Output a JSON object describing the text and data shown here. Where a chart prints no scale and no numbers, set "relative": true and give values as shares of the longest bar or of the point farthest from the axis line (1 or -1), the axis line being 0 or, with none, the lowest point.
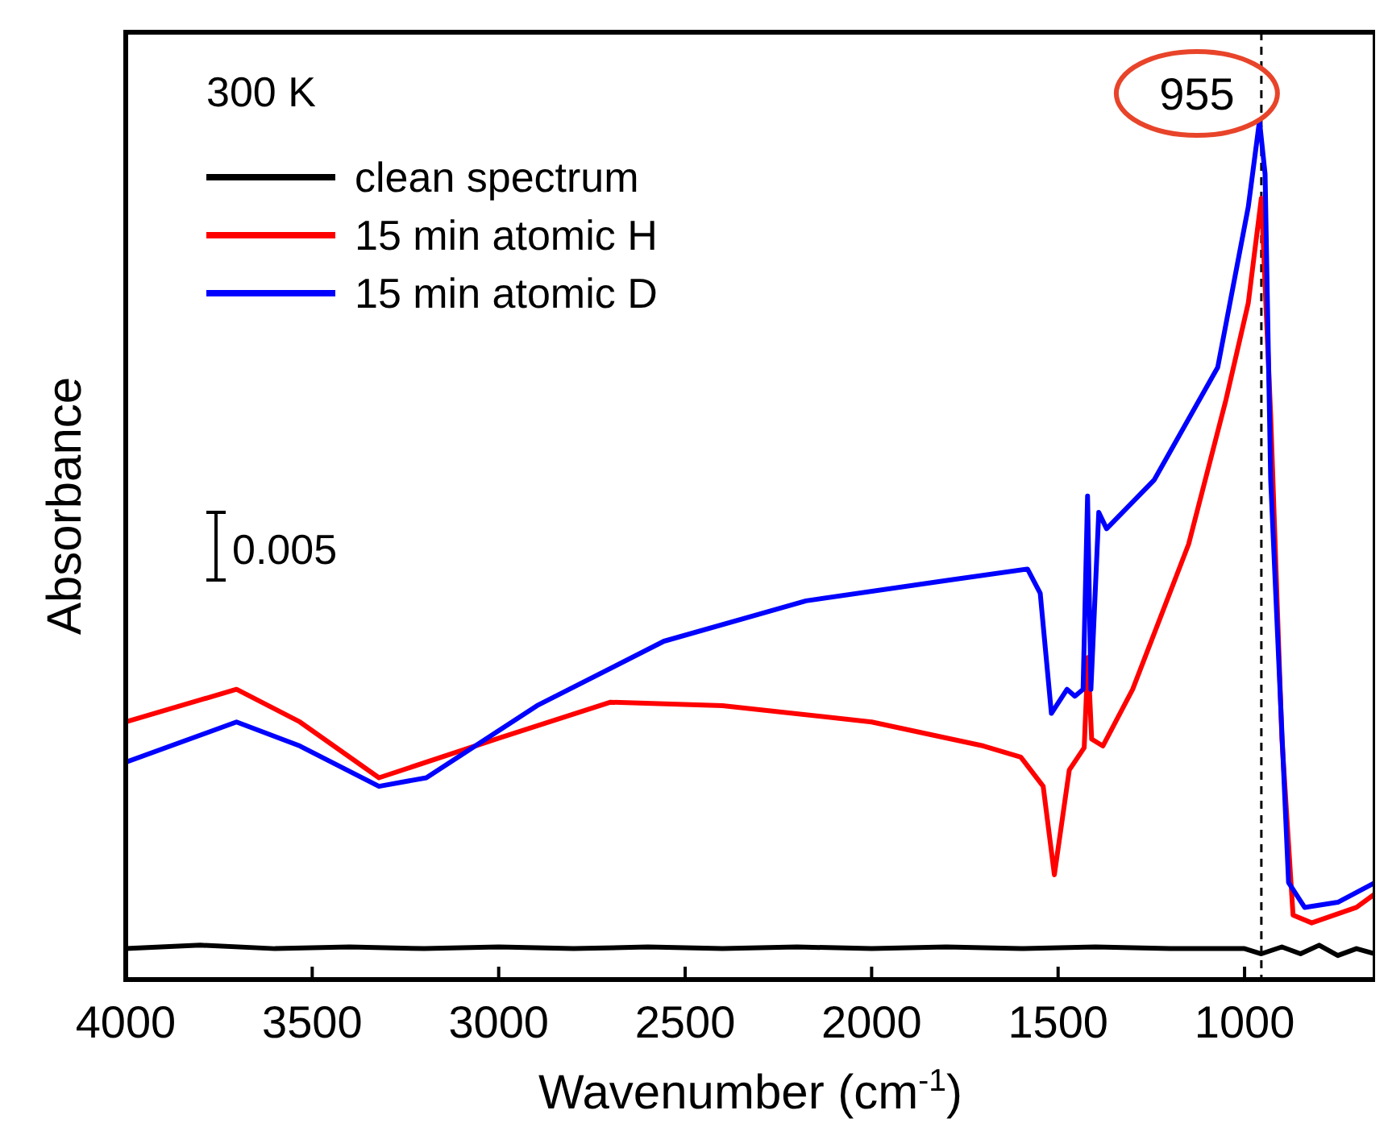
{
  "chart_data": {
    "type": "line",
    "relative": true,
    "xlabel": "Wavenumber (cm$^{-1}$)",
    "ylabel": "Absorbance",
    "legend_title": "300 K",
    "legend": "top left",
    "line_style": "solid",
    "xlim": [
      4000,
      650
    ],
    "xticks": [
      4000,
      3500,
      3000,
      2500,
      2000,
      1500,
      1000
    ],
    "annotations": [
      "0.005"
    ],
    "ref_lines": [
      {
        "axis": "x",
        "value": 955,
        "label": "955",
        "line_style": "dashed",
        "color": "#000000"
      }
    ],
    "series": [
      {
        "name": "clean spectrum",
        "color": "#000000",
        "x": [
          4000,
          3800,
          3600,
          3400,
          3200,
          3000,
          2800,
          2600,
          2400,
          2200,
          2000,
          1800,
          1600,
          1400,
          1200,
          1000,
          955,
          900,
          850,
          800,
          750,
          700,
          650
        ],
        "values": [
          0.036,
          0.04,
          0.036,
          0.038,
          0.036,
          0.038,
          0.036,
          0.038,
          0.036,
          0.038,
          0.036,
          0.038,
          0.036,
          0.038,
          0.036,
          0.036,
          0.03,
          0.038,
          0.03,
          0.04,
          0.028,
          0.036,
          0.03
        ]
      },
      {
        "name": "15 min atomic H",
        "color": "#ff0000",
        "x": [
          4000,
          3703,
          3533,
          3321,
          3000,
          2700,
          2400,
          2000,
          1700,
          1600,
          1540,
          1510,
          1470,
          1430,
          1420,
          1410,
          1380,
          1300,
          1150,
          1050,
          990,
          955,
          930,
          900,
          870,
          820,
          700,
          650
        ],
        "values": [
          0.3,
          0.338,
          0.3,
          0.235,
          0.281,
          0.323,
          0.319,
          0.3,
          0.272,
          0.259,
          0.225,
          0.122,
          0.244,
          0.27,
          0.375,
          0.28,
          0.272,
          0.338,
          0.507,
          0.675,
          0.788,
          0.91,
          0.657,
          0.281,
          0.075,
          0.066,
          0.084,
          0.1
        ]
      },
      {
        "name": "15 min atomic D",
        "color": "#0000ff",
        "x": [
          4000,
          3703,
          3533,
          3321,
          3194,
          2897,
          2557,
          2176,
          1794,
          1582,
          1548,
          1518,
          1476,
          1455,
          1433,
          1421,
          1412,
          1391,
          1370,
          1242,
          1072,
          990,
          960,
          945,
          930,
          882,
          839,
          750,
          650
        ],
        "values": [
          0.253,
          0.3,
          0.272,
          0.225,
          0.235,
          0.319,
          0.394,
          0.441,
          0.465,
          0.478,
          0.45,
          0.31,
          0.338,
          0.33,
          0.338,
          0.563,
          0.338,
          0.544,
          0.525,
          0.582,
          0.713,
          0.9,
          1.0,
          0.938,
          0.582,
          0.113,
          0.084,
          0.09,
          0.113
        ]
      }
    ]
  }
}
